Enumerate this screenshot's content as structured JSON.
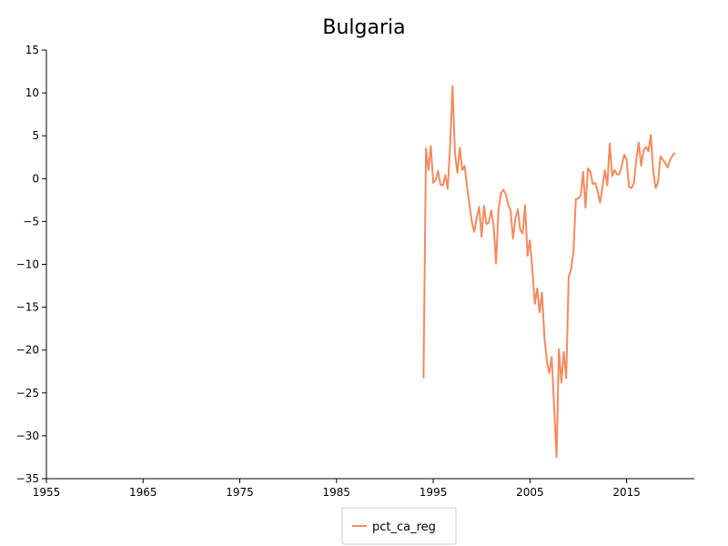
{
  "chart_data": {
    "type": "line",
    "title": "Bulgaria",
    "xlabel": "",
    "ylabel": "",
    "xlim": [
      1955,
      2022
    ],
    "ylim": [
      -35,
      15
    ],
    "x_ticks": [
      1955,
      1965,
      1975,
      1985,
      1995,
      2005,
      2015
    ],
    "y_ticks": [
      15,
      10,
      5,
      0,
      -5,
      -10,
      -15,
      -20,
      -25,
      -30,
      -35
    ],
    "grid": false,
    "legend_position": "bottom-center",
    "series": [
      {
        "name": "pct_ca_reg",
        "color": "#f58a5e",
        "x": [
          1994.0,
          1994.25,
          1994.5,
          1994.75,
          1995.0,
          1995.25,
          1995.5,
          1995.75,
          1996.0,
          1996.25,
          1996.5,
          1996.75,
          1997.0,
          1997.25,
          1997.5,
          1997.75,
          1998.0,
          1998.25,
          1998.5,
          1998.75,
          1999.0,
          1999.25,
          1999.5,
          1999.75,
          2000.0,
          2000.25,
          2000.5,
          2000.75,
          2001.0,
          2001.25,
          2001.5,
          2001.75,
          2002.0,
          2002.25,
          2002.5,
          2002.75,
          2003.0,
          2003.25,
          2003.5,
          2003.75,
          2004.0,
          2004.25,
          2004.5,
          2004.75,
          2005.0,
          2005.25,
          2005.5,
          2005.75,
          2006.0,
          2006.25,
          2006.5,
          2006.75,
          2007.0,
          2007.25,
          2007.5,
          2007.75,
          2008.0,
          2008.25,
          2008.5,
          2008.75,
          2009.0,
          2009.25,
          2009.5,
          2009.75,
          2010.0,
          2010.25,
          2010.5,
          2010.75,
          2011.0,
          2011.25,
          2011.5,
          2011.75,
          2012.0,
          2012.25,
          2012.5,
          2012.75,
          2013.0,
          2013.25,
          2013.5,
          2013.75,
          2014.0,
          2014.25,
          2014.5,
          2014.75,
          2015.0,
          2015.25,
          2015.5,
          2015.75,
          2016.0,
          2016.25,
          2016.5,
          2016.75,
          2017.0,
          2017.25,
          2017.5,
          2017.75,
          2018.0,
          2018.25,
          2018.5,
          2018.75,
          2019.0,
          2019.25,
          2019.5,
          2019.75,
          2020.0
        ],
        "values": [
          -23.3,
          3.5,
          1.0,
          3.8,
          -0.5,
          -0.2,
          0.9,
          -0.7,
          -0.8,
          0.4,
          -1.2,
          4.0,
          10.8,
          2.9,
          0.7,
          3.6,
          1.0,
          1.5,
          -1.0,
          -3.0,
          -5.1,
          -6.2,
          -4.5,
          -3.3,
          -6.8,
          -3.2,
          -5.3,
          -5.1,
          -3.7,
          -5.5,
          -9.9,
          -3.6,
          -1.7,
          -1.3,
          -1.8,
          -3.0,
          -3.7,
          -7.0,
          -4.6,
          -3.6,
          -6.0,
          -6.4,
          -3.1,
          -9.0,
          -7.2,
          -10.5,
          -14.6,
          -12.8,
          -15.6,
          -13.3,
          -18.5,
          -21.3,
          -22.7,
          -20.8,
          -26.5,
          -32.5,
          -19.9,
          -23.8,
          -20.2,
          -23.3,
          -11.5,
          -10.6,
          -8.5,
          -2.4,
          -2.3,
          -2.0,
          0.8,
          -3.4,
          1.2,
          0.8,
          -0.6,
          -0.5,
          -1.5,
          -2.8,
          -1.0,
          1.0,
          -0.8,
          4.1,
          0.3,
          1.0,
          0.5,
          0.5,
          1.5,
          2.8,
          2.2,
          -1.0,
          -1.1,
          -0.5,
          2.2,
          4.2,
          1.5,
          3.3,
          3.7,
          3.2,
          5.1,
          0.9,
          -1.1,
          -0.4,
          2.6,
          2.2,
          1.8,
          1.3,
          2.2,
          2.7,
          3.0
        ]
      }
    ]
  }
}
